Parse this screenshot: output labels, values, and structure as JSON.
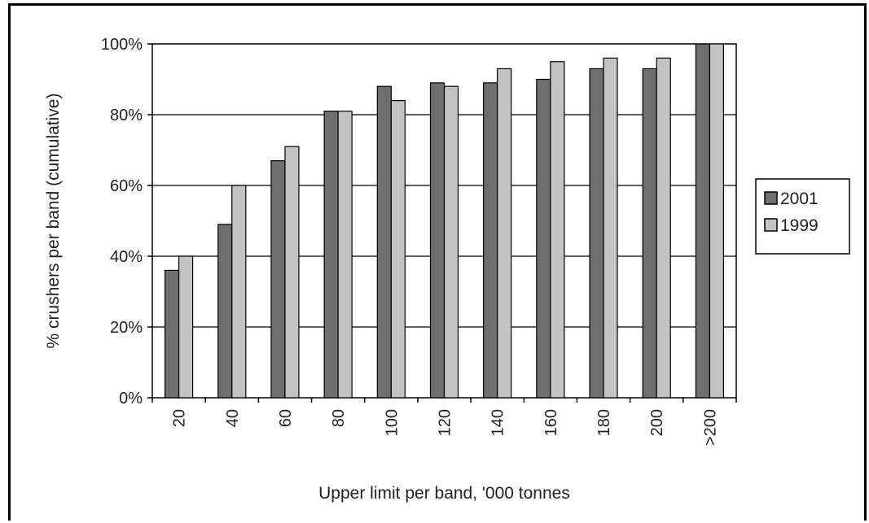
{
  "chart_data": {
    "type": "bar",
    "categories": [
      "20",
      "40",
      "60",
      "80",
      "100",
      "120",
      "140",
      "160",
      "180",
      "200",
      ">200"
    ],
    "series": [
      {
        "name": "2001",
        "values": [
          36,
          49,
          67,
          81,
          88,
          89,
          89,
          90,
          93,
          93,
          100
        ],
        "color": "#6e6e6e"
      },
      {
        "name": "1999",
        "values": [
          40,
          60,
          71,
          81,
          84,
          88,
          93,
          95,
          96,
          96,
          100
        ],
        "color": "#c3c3c3"
      }
    ],
    "title": "",
    "xlabel": "Upper limit per band, '000 tonnes",
    "ylabel": "% crushers per band (cumulative)",
    "ylim": [
      0,
      100
    ],
    "yticks": [
      "0%",
      "20%",
      "40%",
      "60%",
      "80%",
      "100%"
    ],
    "grid": true,
    "legend": "right"
  }
}
